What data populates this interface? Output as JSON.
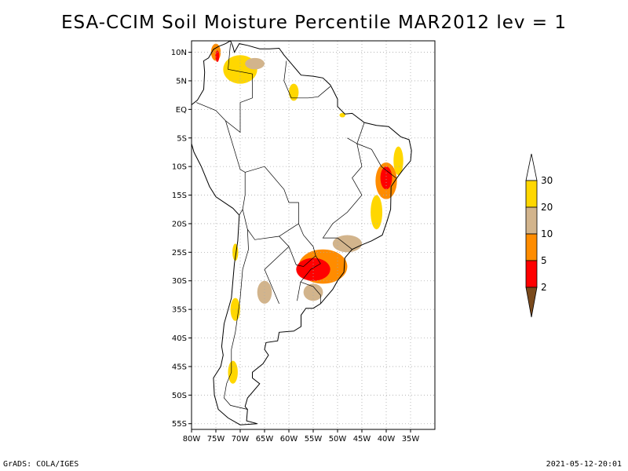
{
  "title": "ESA-CCIM Soil Moisture Percentile MAR2012 lev = 1",
  "footer": {
    "left": "GrADS: COLA/IGES",
    "right": "2021-05-12-20:01"
  },
  "map": {
    "lon_range": [
      -80,
      -30
    ],
    "lat_range": [
      -56,
      12
    ],
    "grid": true,
    "lat_ticks": [
      {
        "value": 10,
        "label": "10N"
      },
      {
        "value": 5,
        "label": "5N"
      },
      {
        "value": 0,
        "label": "EQ"
      },
      {
        "value": -5,
        "label": "5S"
      },
      {
        "value": -10,
        "label": "10S"
      },
      {
        "value": -15,
        "label": "15S"
      },
      {
        "value": -20,
        "label": "20S"
      },
      {
        "value": -25,
        "label": "25S"
      },
      {
        "value": -30,
        "label": "30S"
      },
      {
        "value": -35,
        "label": "35S"
      },
      {
        "value": -40,
        "label": "40S"
      },
      {
        "value": -45,
        "label": "45S"
      },
      {
        "value": -50,
        "label": "50S"
      },
      {
        "value": -55,
        "label": "55S"
      }
    ],
    "lon_ticks": [
      {
        "value": -80,
        "label": "80W"
      },
      {
        "value": -75,
        "label": "75W"
      },
      {
        "value": -70,
        "label": "70W"
      },
      {
        "value": -65,
        "label": "65W"
      },
      {
        "value": -60,
        "label": "60W"
      },
      {
        "value": -55,
        "label": "55W"
      },
      {
        "value": -50,
        "label": "50W"
      },
      {
        "value": -45,
        "label": "45W"
      },
      {
        "value": -40,
        "label": "40W"
      },
      {
        "value": -35,
        "label": "35W"
      }
    ]
  },
  "colorbar": {
    "bins": [
      {
        "upper": "",
        "color": "#7a4a1c"
      },
      {
        "upper": "2",
        "color": "#ff0000"
      },
      {
        "upper": "5",
        "color": "#ff8c00"
      },
      {
        "upper": "10",
        "color": "#d2b48c"
      },
      {
        "upper": "20",
        "color": "#ffd700"
      },
      {
        "upper": "30",
        "color": "#ffffff"
      }
    ],
    "labels": [
      "2",
      "5",
      "10",
      "20",
      "30"
    ]
  },
  "anomaly_regions": [
    {
      "name": "venezuela-colombia",
      "lon": -70,
      "lat": 7,
      "rlon": 3.5,
      "rlat": 2.5,
      "color": "#ffd700"
    },
    {
      "name": "colombia-north",
      "lon": -75,
      "lat": 10,
      "rlon": 1,
      "rlat": 1.5,
      "color": "#ff8c00"
    },
    {
      "name": "colombia-core",
      "lon": -74.7,
      "lat": 9.3,
      "rlon": 0.4,
      "rlat": 1,
      "color": "#ff0000"
    },
    {
      "name": "venezuela-tan",
      "lon": -67,
      "lat": 8,
      "rlon": 2,
      "rlat": 1,
      "color": "#d2b48c"
    },
    {
      "name": "guyana",
      "lon": -59,
      "lat": 3,
      "rlon": 1,
      "rlat": 1.5,
      "color": "#ffd700"
    },
    {
      "name": "bahia",
      "lon": -40,
      "lat": -12.5,
      "rlon": 2.2,
      "rlat": 3.2,
      "color": "#ff8c00"
    },
    {
      "name": "bahia-core",
      "lon": -40,
      "lat": -12,
      "rlon": 1.2,
      "rlat": 2,
      "color": "#ff0000"
    },
    {
      "name": "northeast-coast",
      "lon": -37.5,
      "lat": -9,
      "rlon": 1,
      "rlat": 2.5,
      "color": "#ffd700"
    },
    {
      "name": "southeast-coast",
      "lon": -42,
      "lat": -18,
      "rlon": 1.2,
      "rlat": 3,
      "color": "#ffd700"
    },
    {
      "name": "parana",
      "lon": -53,
      "lat": -27.5,
      "rlon": 5,
      "rlat": 3,
      "color": "#ff8c00"
    },
    {
      "name": "parana-core",
      "lon": -55,
      "lat": -28,
      "rlon": 3.5,
      "rlat": 2,
      "color": "#ff0000"
    },
    {
      "name": "sao-paulo",
      "lon": -48,
      "lat": -23.5,
      "rlon": 3,
      "rlat": 1.5,
      "color": "#d2b48c"
    },
    {
      "name": "uruguay",
      "lon": -55,
      "lat": -32,
      "rlon": 2,
      "rlat": 1.5,
      "color": "#d2b48c"
    },
    {
      "name": "argentina-mid",
      "lon": -65,
      "lat": -32,
      "rlon": 1.5,
      "rlat": 2,
      "color": "#d2b48c"
    },
    {
      "name": "chile-central",
      "lon": -71,
      "lat": -35,
      "rlon": 1,
      "rlat": 2,
      "color": "#ffd700"
    },
    {
      "name": "chile-north",
      "lon": -71,
      "lat": -25,
      "rlon": 0.6,
      "rlat": 1.5,
      "color": "#ffd700"
    },
    {
      "name": "patagonia",
      "lon": -71.5,
      "lat": -46,
      "rlon": 1,
      "rlat": 2,
      "color": "#ffd700"
    },
    {
      "name": "amazon-east",
      "lon": -49,
      "lat": -1,
      "rlon": 0.6,
      "rlat": 0.4,
      "color": "#ffd700"
    }
  ]
}
